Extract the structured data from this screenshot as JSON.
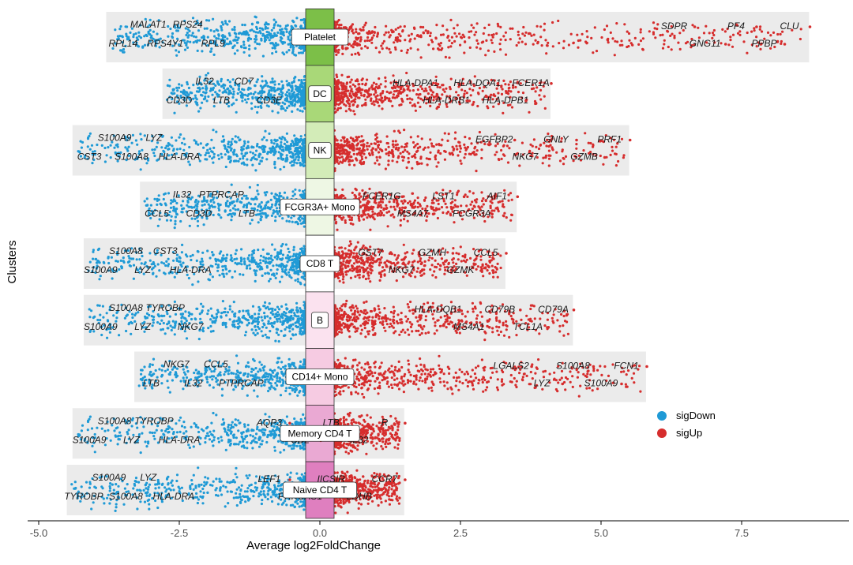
{
  "chart_data": {
    "type": "scatter",
    "title": "",
    "xlabel": "Average log2FoldChange",
    "ylabel": "Clusters",
    "xlim": [
      -5.5,
      9.5
    ],
    "x_ticks": [
      -5.0,
      -2.5,
      0.0,
      2.5,
      5.0,
      7.5
    ],
    "x_tick_labels": [
      "-5.0",
      "-2.5",
      "0.0",
      "2.5",
      "5.0",
      "7.5"
    ],
    "grid": false,
    "legend_position": "right",
    "legend": [
      {
        "name": "sigDown",
        "color": "#1f9ad6"
      },
      {
        "name": "sigUp",
        "color": "#d62d2d"
      }
    ],
    "clusters": [
      {
        "name": "Platelet",
        "color": "#7cbf48",
        "range": [
          -3.8,
          8.7
        ],
        "down_labels": [
          "MALAT1",
          "RPS24",
          "RPL14",
          "RPS4Y1",
          "RPL9"
        ],
        "up_labels": [
          "SDPR",
          "PF4",
          "CLU",
          "GNG11",
          "PPBP"
        ]
      },
      {
        "name": "DC",
        "color": "#a9d878",
        "range": [
          -2.8,
          4.1
        ],
        "down_labels": [
          "IL32",
          "CD7",
          "CD3D",
          "LTB",
          "CD3E"
        ],
        "up_labels": [
          "HLA-DPA1",
          "HLA-DQA1",
          "FCER1A",
          "HLA-DRB1",
          "HLA-DPB1"
        ]
      },
      {
        "name": "NK",
        "color": "#d3ecb8",
        "range": [
          -4.4,
          5.5
        ],
        "down_labels": [
          "S100A9",
          "LYZ",
          "CST3",
          "S100A8",
          "HLA-DRA"
        ],
        "up_labels": [
          "EGFBP2",
          "GNLY",
          "PRF1",
          "NKG7",
          "GZMB"
        ]
      },
      {
        "name": "FCGR3A+ Mono",
        "color": "#eef7e4",
        "range": [
          -3.2,
          3.5
        ],
        "down_labels": [
          "IL32",
          "PTPRCAP",
          "CCL5",
          "CD3D",
          "LTB"
        ],
        "up_labels": [
          "FCER1G",
          "LST1",
          "AIF1",
          "MS4A7",
          "FCGR3A"
        ]
      },
      {
        "name": "CD8 T",
        "color": "#ffffff",
        "range": [
          -4.2,
          3.3
        ],
        "down_labels": [
          "S100A8",
          "CST3",
          "S100A9",
          "LYZ",
          "HLA-DRA"
        ],
        "up_labels": [
          "GST7",
          "GZMH",
          "CCL5",
          "NKG7",
          "GZMK"
        ]
      },
      {
        "name": "B",
        "color": "#fbe2ef",
        "range": [
          -4.2,
          4.5
        ],
        "down_labels": [
          "S100A8",
          "TYROBP",
          "S100A9",
          "LYZ",
          "NKG7"
        ],
        "up_labels": [
          "HLA-DQB1",
          "CD79B",
          "CD79A",
          "MS4A1",
          "TCL1A"
        ]
      },
      {
        "name": "CD14+ Mono",
        "color": "#f6cbe2",
        "range": [
          -3.3,
          5.8
        ],
        "down_labels": [
          "NKG7",
          "CCL5",
          "LTB",
          "IL32",
          "PTPRCAP"
        ],
        "up_labels": [
          "LGALS2",
          "S100A8",
          "FCN1",
          "LYZ",
          "S100A9"
        ]
      },
      {
        "name": "Memory CD4 T",
        "color": "#eaa9d3",
        "range": [
          -4.4,
          1.5
        ],
        "down_labels": [
          "S100A8",
          "TYROBP",
          "S100A9",
          "LYZ",
          "HLA-DRA"
        ],
        "up_labels": [
          "AQP3",
          "LTB",
          "R",
          "CD2",
          "IL32"
        ]
      },
      {
        "name": "Naive CD4 T",
        "color": "#df7fbf",
        "range": [
          -4.5,
          1.5
        ],
        "down_labels": [
          "S100A9",
          "LYZ",
          "TYROBP",
          "S100A8",
          "HLA-DRA"
        ],
        "up_labels": [
          "LEF1",
          "IICSIR",
          "CCR7",
          "PRKCAS1",
          "LDHB"
        ]
      }
    ]
  }
}
